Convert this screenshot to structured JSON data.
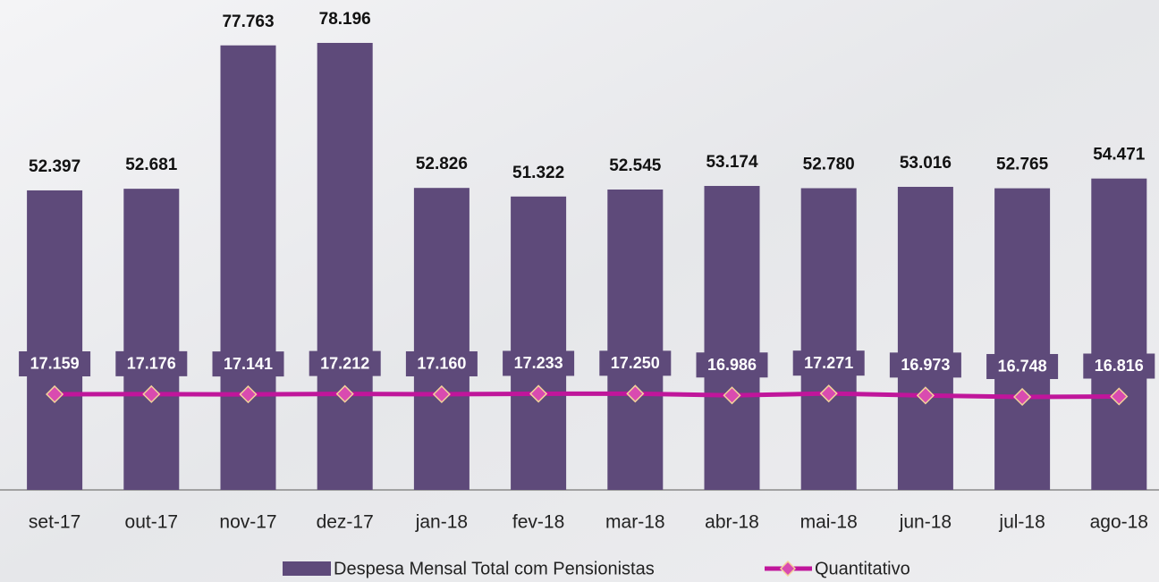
{
  "chart_data": {
    "type": "bar",
    "categories": [
      "set-17",
      "out-17",
      "nov-17",
      "dez-17",
      "jan-18",
      "fev-18",
      "mar-18",
      "abr-18",
      "mai-18",
      "jun-18",
      "jul-18",
      "ago-18"
    ],
    "series": [
      {
        "name": "Despesa Mensal Total com Pensionistas",
        "type": "bar",
        "color": "#5e4a7a",
        "values": [
          52397,
          52681,
          77763,
          78196,
          52826,
          51322,
          52545,
          53174,
          52780,
          53016,
          52765,
          54471
        ],
        "value_labels": [
          "52.397",
          "52.681",
          "77.763",
          "78.196",
          "52.826",
          "51.322",
          "52.545",
          "53.174",
          "52.780",
          "53.016",
          "52.765",
          "54.471"
        ]
      },
      {
        "name": "Quantitativo",
        "type": "line",
        "axis": "y2",
        "color": "#c0169b",
        "values": [
          17159,
          17176,
          17141,
          17212,
          17160,
          17233,
          17250,
          16986,
          17271,
          16973,
          16748,
          16816
        ],
        "value_labels": [
          "17.159",
          "17.176",
          "17.141",
          "17.212",
          "17.160",
          "17.233",
          "17.250",
          "16.986",
          "17.271",
          "16.973",
          "16.748",
          "16.816"
        ]
      }
    ],
    "ylim": [
      0,
      85700
    ],
    "y2lim": [
      2500,
      77570
    ],
    "legend": "bottom"
  }
}
